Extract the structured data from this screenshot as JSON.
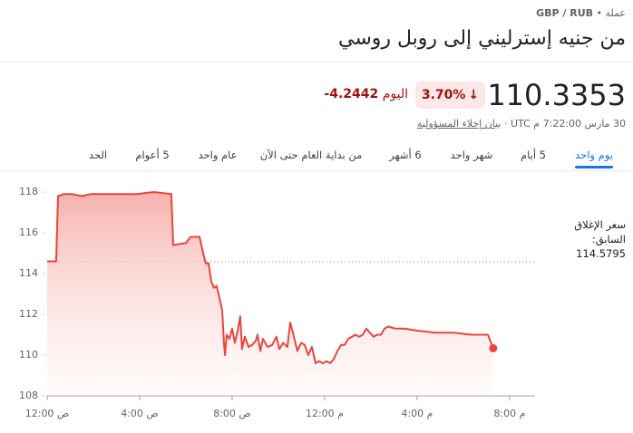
{
  "header": {
    "category": "عملة",
    "pair": "GBP / RUB",
    "title": "من جنيه إسترليني إلى روبل روسي"
  },
  "quote": {
    "price": 110.3353,
    "change_percent": "3.70%",
    "change": -4.2442,
    "change_period": "اليوم",
    "timestamp": "30 مارس 7:22:00 م UTC",
    "disclaimer": "بيان إخلاء المسؤولية"
  },
  "tabs": [
    "يوم واحد",
    "5 أيام",
    "شهر واحد",
    "6 أشهر",
    "من بداية العام حتى الآن",
    "عام واحد",
    "5 أعوام",
    "الحد"
  ],
  "chart_data": {
    "type": "line",
    "x": [
      0,
      0.39,
      0.47,
      0.71,
      1.1,
      1.49,
      1.88,
      2.47,
      3.06,
      3.84,
      4.63,
      5.37,
      5.45,
      6.0,
      6.2,
      6.59,
      6.75,
      6.86,
      6.98,
      7.1,
      7.22,
      7.33,
      7.45,
      7.57,
      7.65,
      7.69,
      7.76,
      7.88,
      8.0,
      8.12,
      8.24,
      8.35,
      8.43,
      8.55,
      8.71,
      8.86,
      9.02,
      9.1,
      9.22,
      9.33,
      9.53,
      9.73,
      9.92,
      10.04,
      10.2,
      10.39,
      10.51,
      10.67,
      10.82,
      10.98,
      11.14,
      11.29,
      11.45,
      11.61,
      11.76,
      11.92,
      12.08,
      12.24,
      12.39,
      12.55,
      12.71,
      12.86,
      13.02,
      13.18,
      13.33,
      13.49,
      13.65,
      13.8,
      13.96,
      14.12,
      14.27,
      14.43,
      14.59,
      14.75,
      15.06,
      15.45,
      16.0,
      16.78,
      17.57,
      18.35,
      19.06,
      19.29
    ],
    "series": [
      {
        "color": "#e8453c",
        "values": [
          114.6,
          114.6,
          117.8,
          117.9,
          117.9,
          117.8,
          117.9,
          117.9,
          117.9,
          117.9,
          118.0,
          117.9,
          115.4,
          115.5,
          115.8,
          115.8,
          115.0,
          114.5,
          114.5,
          113.6,
          113.3,
          113.4,
          112.8,
          112.2,
          110.5,
          110.0,
          111.0,
          110.8,
          111.3,
          110.6,
          111.2,
          111.9,
          110.3,
          110.9,
          110.4,
          110.5,
          110.7,
          111.0,
          110.2,
          110.8,
          110.4,
          110.5,
          110.9,
          110.3,
          110.6,
          110.4,
          111.6,
          110.9,
          110.2,
          110.6,
          110.5,
          110.0,
          110.4,
          109.6,
          109.7,
          109.6,
          109.7,
          109.6,
          109.8,
          110.2,
          110.5,
          110.5,
          110.8,
          110.9,
          111.0,
          110.9,
          111.0,
          111.3,
          111.1,
          110.9,
          111.0,
          111.0,
          111.3,
          111.4,
          111.3,
          111.3,
          111.2,
          111.1,
          111.1,
          111.0,
          111.0,
          110.3353
        ]
      }
    ],
    "xlim": [
      0,
      21.1
    ],
    "xticks": [
      {
        "value": 0,
        "label": "12:00 ص"
      },
      {
        "value": 4,
        "label": "4:00 ص"
      },
      {
        "value": 8,
        "label": "8:00 ص"
      },
      {
        "value": 12,
        "label": "12:00 م"
      },
      {
        "value": 16,
        "label": "4:00 م"
      },
      {
        "value": 20,
        "label": "8:00 م"
      }
    ],
    "ylim": [
      108,
      118.4
    ],
    "yticks": [
      108,
      110,
      112,
      114,
      116,
      118
    ],
    "previous_close": 114.5795,
    "previous_close_label": "سعر الإغلاق السابق:"
  }
}
